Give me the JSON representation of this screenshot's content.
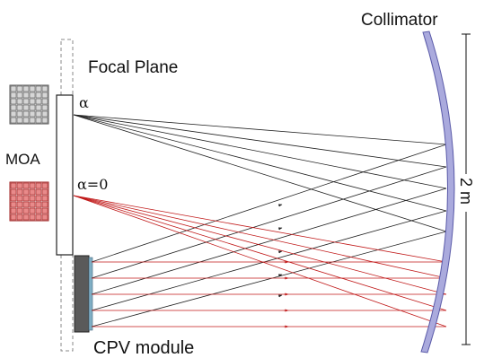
{
  "labels": {
    "collimator": "Collimator",
    "focal_plane": "Focal Plane",
    "moa": "MOA",
    "alpha": "α",
    "alpha_zero": "α=0",
    "distance": "2 m",
    "cpv_module": "CPV module"
  },
  "colors": {
    "collimator_fill": "#aaaadd",
    "collimator_stroke": "#5a5aa8",
    "black_rays": "#222222",
    "red_rays": "#c01818",
    "grey_grid_fill": "#d6d6d6",
    "red_grid_fill": "#e88a8a",
    "cpv_module": "#5a5a5a"
  }
}
